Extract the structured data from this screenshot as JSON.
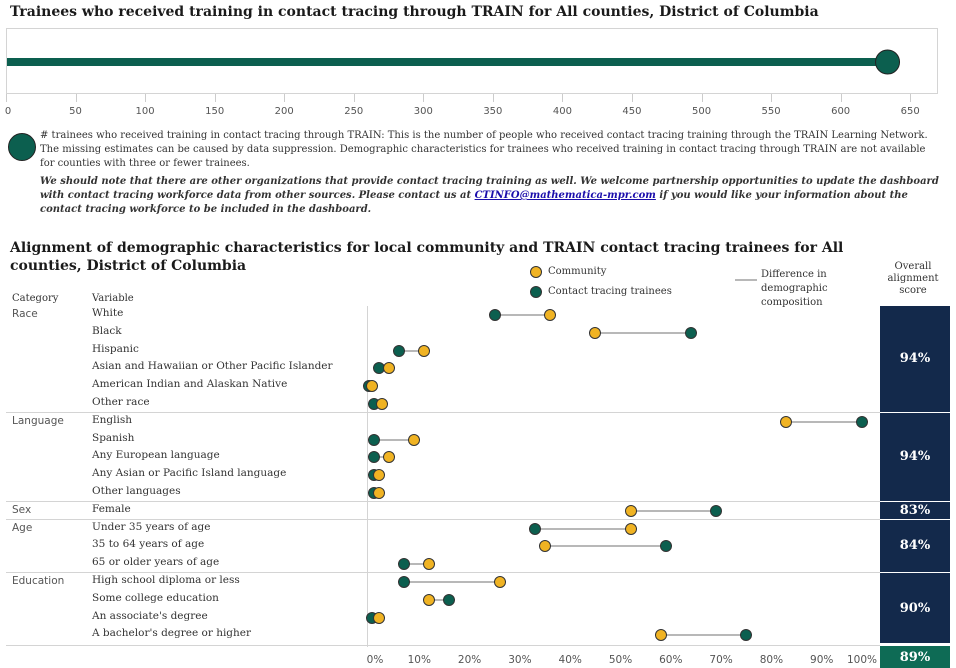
{
  "top_chart": {
    "title": "Trainees who received training in contact tracing through TRAIN for All counties, District of Columbia",
    "value": 633,
    "xlim": [
      0,
      670
    ],
    "ticks": [
      "0",
      "50",
      "100",
      "150",
      "200",
      "250",
      "300",
      "350",
      "400",
      "450",
      "500",
      "550",
      "600",
      "650"
    ],
    "tick_values": [
      0,
      50,
      100,
      150,
      200,
      250,
      300,
      350,
      400,
      450,
      500,
      550,
      600,
      650
    ],
    "color": "#0c5f4f"
  },
  "notes": {
    "definition": "# trainees who received training in contact tracing through TRAIN: This is the number of people who received contact tracing training through the TRAIN Learning Network. The missing estimates can be caused by data suppression. Demographic characteristics for trainees who received training in contact tracing through TRAIN are not available for counties with three or fewer trainees.",
    "italic_before_link": "We should note that there are other organizations that provide contact tracing training as well. We welcome partnership opportunities to update the dashboard with contact tracing workforce data from other sources. Please contact us at ",
    "link": "CTINFO@mathematica-mpr.com",
    "italic_after_link": " if you would like your information about the contact tracing workforce to be included in the dashboard."
  },
  "chart_data": {
    "type": "scatter",
    "title": "Alignment of demographic characteristics for local community and TRAIN contact tracing trainees for All counties, District of Columbia",
    "legend": {
      "community": "Community",
      "trainees": "Contact tracing trainees",
      "difference": "Difference in demographic composition",
      "score": "Overall alignment score"
    },
    "colors": {
      "community": "#f0b323",
      "trainees": "#0c5f4f",
      "line": "#b8b8b8",
      "score_bg": "#13294b",
      "overall_bg": "#0e6b55"
    },
    "headers": {
      "category": "Category",
      "variable": "Variable"
    },
    "xlim": [
      0,
      100
    ],
    "x_ticks": [
      "0%",
      "10%",
      "20%",
      "30%",
      "40%",
      "50%",
      "60%",
      "70%",
      "80%",
      "90%",
      "100%"
    ],
    "groups": [
      {
        "category": "Race",
        "score": "94%",
        "rows": [
          {
            "variable": "White",
            "community": 36,
            "trainees": 25
          },
          {
            "variable": "Black",
            "community": 45,
            "trainees": 64
          },
          {
            "variable": "Hispanic",
            "community": 11,
            "trainees": 6
          },
          {
            "variable": "Asian and Hawaiian or Other Pacific Islander",
            "community": 4,
            "trainees": 2
          },
          {
            "variable": "American Indian and Alaskan Native",
            "community": 0.5,
            "trainees": 0
          },
          {
            "variable": "Other race",
            "community": 2.5,
            "trainees": 1
          }
        ]
      },
      {
        "category": "Language",
        "score": "94%",
        "rows": [
          {
            "variable": "English",
            "community": 83,
            "trainees": 98
          },
          {
            "variable": "Spanish",
            "community": 9,
            "trainees": 1
          },
          {
            "variable": "Any European language",
            "community": 4,
            "trainees": 1
          },
          {
            "variable": "Any Asian or Pacific Island language",
            "community": 2,
            "trainees": 1
          },
          {
            "variable": "Other languages",
            "community": 2,
            "trainees": 1
          }
        ]
      },
      {
        "category": "Sex",
        "score": "83%",
        "rows": [
          {
            "variable": "Female",
            "community": 52,
            "trainees": 69
          }
        ]
      },
      {
        "category": "Age",
        "score": "84%",
        "rows": [
          {
            "variable": "Under 35 years of age",
            "community": 52,
            "trainees": 33
          },
          {
            "variable": "35 to 64 years of age",
            "community": 35,
            "trainees": 59
          },
          {
            "variable": "65 or older years of age",
            "community": 12,
            "trainees": 7
          }
        ]
      },
      {
        "category": "Education",
        "score": "90%",
        "rows": [
          {
            "variable": "High school diploma or less",
            "community": 26,
            "trainees": 7
          },
          {
            "variable": "Some college education",
            "community": 12,
            "trainees": 16
          },
          {
            "variable": "An associate's degree",
            "community": 2,
            "trainees": 0.5
          },
          {
            "variable": "A bachelor's degree or higher",
            "community": 58,
            "trainees": 75
          }
        ]
      }
    ],
    "overall_score": "89%"
  }
}
